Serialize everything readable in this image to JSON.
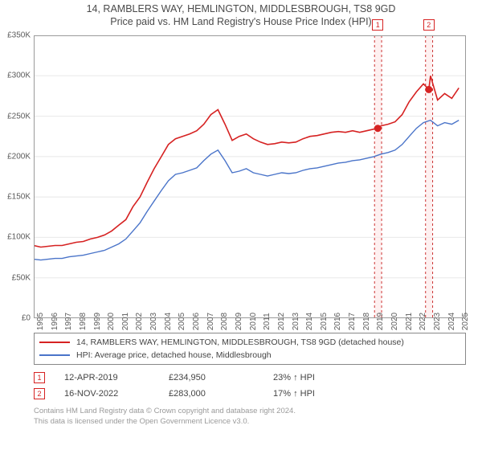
{
  "title_line1": "14, RAMBLERS WAY, HEMLINGTON, MIDDLESBROUGH, TS8 9GD",
  "title_line2": "Price paid vs. HM Land Registry's House Price Index (HPI)",
  "chart": {
    "type": "line",
    "background_color": "#ffffff",
    "grid_color": "#e8e8e8",
    "border_color": "#9a9a9a",
    "xlim": [
      1995,
      2025.5
    ],
    "ylim": [
      0,
      350000
    ],
    "ytick_step": 50000,
    "yticks": [
      0,
      50000,
      100000,
      150000,
      200000,
      250000,
      300000,
      350000
    ],
    "ytick_labels": [
      "£0",
      "£50K",
      "£100K",
      "£150K",
      "£200K",
      "£250K",
      "£300K",
      "£350K"
    ],
    "xticks": [
      1995,
      1996,
      1997,
      1998,
      1999,
      2000,
      2001,
      2002,
      2003,
      2004,
      2005,
      2006,
      2007,
      2008,
      2009,
      2010,
      2011,
      2012,
      2013,
      2014,
      2015,
      2016,
      2017,
      2018,
      2019,
      2020,
      2021,
      2022,
      2023,
      2024,
      2025
    ],
    "tick_fontsize": 10,
    "series": [
      {
        "name": "property",
        "color": "#d62222",
        "line_width": 1.6,
        "label": "14, RAMBLERS WAY, HEMLINGTON, MIDDLESBROUGH, TS8 9GD (detached house)",
        "x": [
          1995,
          1995.5,
          1996,
          1996.5,
          1997,
          1997.5,
          1998,
          1998.5,
          1999,
          1999.5,
          2000,
          2000.5,
          2001,
          2001.5,
          2002,
          2002.5,
          2003,
          2003.5,
          2004,
          2004.5,
          2005,
          2005.5,
          2006,
          2006.5,
          2007,
          2007.5,
          2008,
          2008.5,
          2009,
          2009.5,
          2010,
          2010.5,
          2011,
          2011.5,
          2012,
          2012.5,
          2013,
          2013.5,
          2014,
          2014.5,
          2015,
          2015.5,
          2016,
          2016.5,
          2017,
          2017.5,
          2018,
          2018.5,
          2019,
          2019.28,
          2019.5,
          2020,
          2020.5,
          2021,
          2021.5,
          2022,
          2022.5,
          2022.88,
          2023,
          2023.5,
          2024,
          2024.5,
          2025
        ],
        "y": [
          90000,
          88000,
          89000,
          90000,
          90000,
          92000,
          94000,
          95000,
          98000,
          100000,
          103000,
          108000,
          115000,
          122000,
          138000,
          150000,
          168000,
          185000,
          200000,
          215000,
          222000,
          225000,
          228000,
          232000,
          240000,
          252000,
          258000,
          240000,
          220000,
          225000,
          228000,
          222000,
          218000,
          215000,
          216000,
          218000,
          217000,
          218000,
          222000,
          225000,
          226000,
          228000,
          230000,
          231000,
          230000,
          232000,
          230000,
          232000,
          234000,
          234950,
          238000,
          240000,
          243000,
          252000,
          268000,
          280000,
          290000,
          283000,
          300000,
          270000,
          278000,
          272000,
          285000
        ]
      },
      {
        "name": "hpi",
        "color": "#4a74c9",
        "line_width": 1.4,
        "label": "HPI: Average price, detached house, Middlesbrough",
        "x": [
          1995,
          1995.5,
          1996,
          1996.5,
          1997,
          1997.5,
          1998,
          1998.5,
          1999,
          1999.5,
          2000,
          2000.5,
          2001,
          2001.5,
          2002,
          2002.5,
          2003,
          2003.5,
          2004,
          2004.5,
          2005,
          2005.5,
          2006,
          2006.5,
          2007,
          2007.5,
          2008,
          2008.5,
          2009,
          2009.5,
          2010,
          2010.5,
          2011,
          2011.5,
          2012,
          2012.5,
          2013,
          2013.5,
          2014,
          2014.5,
          2015,
          2015.5,
          2016,
          2016.5,
          2017,
          2017.5,
          2018,
          2018.5,
          2019,
          2019.5,
          2020,
          2020.5,
          2021,
          2021.5,
          2022,
          2022.5,
          2023,
          2023.5,
          2024,
          2024.5,
          2025
        ],
        "y": [
          73000,
          72000,
          73000,
          74000,
          74000,
          76000,
          77000,
          78000,
          80000,
          82000,
          84000,
          88000,
          92000,
          98000,
          108000,
          118000,
          132000,
          145000,
          158000,
          170000,
          178000,
          180000,
          183000,
          186000,
          195000,
          203000,
          208000,
          195000,
          180000,
          182000,
          185000,
          180000,
          178000,
          176000,
          178000,
          180000,
          179000,
          180000,
          183000,
          185000,
          186000,
          188000,
          190000,
          192000,
          193000,
          195000,
          196000,
          198000,
          200000,
          203000,
          205000,
          208000,
          215000,
          225000,
          235000,
          242000,
          245000,
          238000,
          242000,
          240000,
          245000
        ]
      }
    ],
    "sale_markers": [
      {
        "n": "1",
        "x": 2019.28,
        "y": 234950,
        "band": [
          2019.05,
          2019.55
        ]
      },
      {
        "n": "2",
        "x": 2022.88,
        "y": 283000,
        "band": [
          2022.65,
          2023.15
        ]
      }
    ]
  },
  "sales": [
    {
      "n": "1",
      "date": "12-APR-2019",
      "price": "£234,950",
      "vs": "23% ↑ HPI"
    },
    {
      "n": "2",
      "date": "16-NOV-2022",
      "price": "£283,000",
      "vs": "17% ↑ HPI"
    }
  ],
  "footer_line1": "Contains HM Land Registry data © Crown copyright and database right 2024.",
  "footer_line2": "This data is licensed under the Open Government Licence v3.0."
}
